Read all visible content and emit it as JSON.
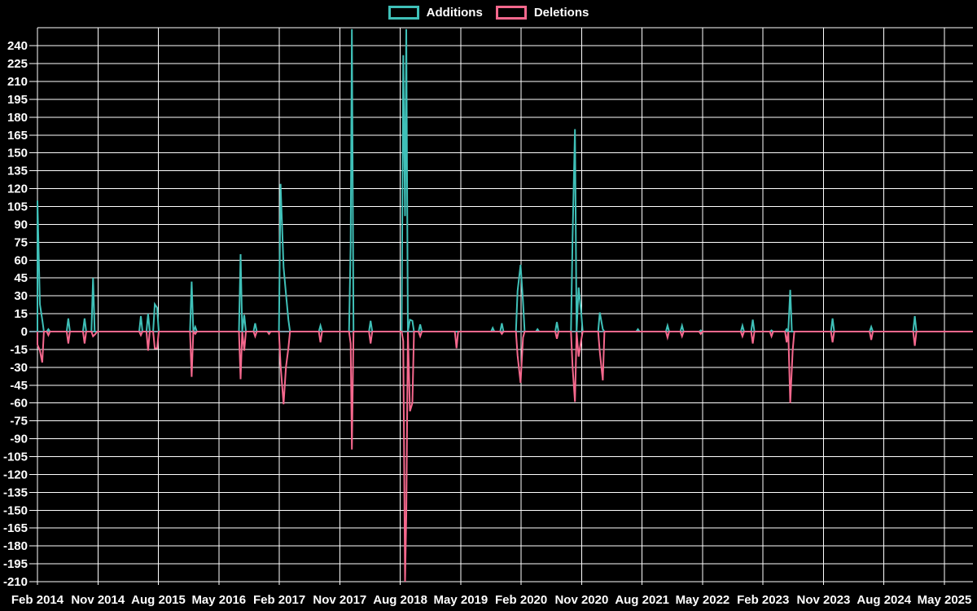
{
  "chart_data": {
    "type": "line",
    "legend_position": "top-center",
    "series": [
      {
        "name": "Additions",
        "color": "#3fc0b8"
      },
      {
        "name": "Deletions",
        "color": "#f5688d"
      }
    ],
    "colors": {
      "background": "#000000",
      "grid": "#ffffff",
      "zero_line": "#7f99a8",
      "text": "#ffffff"
    },
    "y_axis": {
      "min": -210,
      "max": 240,
      "step": 15,
      "unlabeled_top": 255
    },
    "x_axis": {
      "labels": [
        "Feb 2014",
        "Nov 2014",
        "Aug 2015",
        "May 2016",
        "Feb 2017",
        "Nov 2017",
        "Aug 2018",
        "May 2019",
        "Feb 2020",
        "Nov 2020",
        "Aug 2021",
        "May 2022",
        "Feb 2023",
        "Nov 2023",
        "Aug 2024",
        "May 2025"
      ],
      "months_per_gridline": 9,
      "grid": true
    },
    "points_format": [
      "x_in_gridline_units_from_Feb2014",
      "additions",
      "deletions"
    ],
    "points": [
      [
        0.0,
        110,
        -11
      ],
      [
        0.04,
        23,
        -16
      ],
      [
        0.08,
        10,
        -26
      ],
      [
        0.18,
        2,
        -3
      ],
      [
        0.51,
        11,
        -10
      ],
      [
        0.78,
        11,
        -10
      ],
      [
        0.92,
        45,
        -4
      ],
      [
        0.96,
        0,
        -2
      ],
      [
        1.71,
        13,
        -3
      ],
      [
        1.83,
        15,
        -16
      ],
      [
        1.94,
        23,
        -14
      ],
      [
        1.98,
        20,
        -14
      ],
      [
        2.55,
        42,
        -38
      ],
      [
        2.61,
        4,
        -2
      ],
      [
        3.36,
        65,
        -40
      ],
      [
        3.42,
        14,
        -16
      ],
      [
        3.6,
        7,
        -4
      ],
      [
        3.83,
        0,
        -2
      ],
      [
        4.02,
        124,
        -28
      ],
      [
        4.07,
        54,
        -61
      ],
      [
        4.11,
        32,
        -30
      ],
      [
        4.15,
        10,
        -14
      ],
      [
        4.68,
        5,
        -9
      ],
      [
        5.18,
        73,
        -10
      ],
      [
        5.2,
        254,
        -99
      ],
      [
        5.51,
        9,
        -10
      ],
      [
        6.05,
        232,
        -8
      ],
      [
        6.08,
        97,
        -210
      ],
      [
        6.1,
        254,
        -155
      ],
      [
        6.16,
        10,
        -67
      ],
      [
        6.2,
        9,
        -60
      ],
      [
        6.33,
        6,
        -4
      ],
      [
        6.93,
        0,
        -14
      ],
      [
        7.53,
        3,
        0
      ],
      [
        7.68,
        7,
        -2
      ],
      [
        7.94,
        34,
        -20
      ],
      [
        7.99,
        56,
        -43
      ],
      [
        8.03,
        25,
        -5
      ],
      [
        8.27,
        2,
        0
      ],
      [
        8.59,
        8,
        -6
      ],
      [
        8.85,
        80,
        -30
      ],
      [
        8.89,
        170,
        -59
      ],
      [
        8.95,
        37,
        -21
      ],
      [
        8.99,
        17,
        -8
      ],
      [
        9.3,
        16,
        -17
      ],
      [
        9.35,
        2,
        -41
      ],
      [
        9.93,
        2,
        0
      ],
      [
        10.42,
        5,
        -5
      ],
      [
        10.66,
        5,
        -4
      ],
      [
        10.97,
        1,
        -2
      ],
      [
        11.66,
        5,
        -4
      ],
      [
        11.83,
        10,
        -10
      ],
      [
        12.14,
        1,
        -4
      ],
      [
        12.39,
        2,
        -9
      ],
      [
        12.45,
        35,
        -60
      ],
      [
        12.49,
        0,
        -16
      ],
      [
        13.15,
        11,
        -9
      ],
      [
        13.79,
        4,
        -7
      ],
      [
        14.51,
        13,
        -12
      ]
    ]
  }
}
